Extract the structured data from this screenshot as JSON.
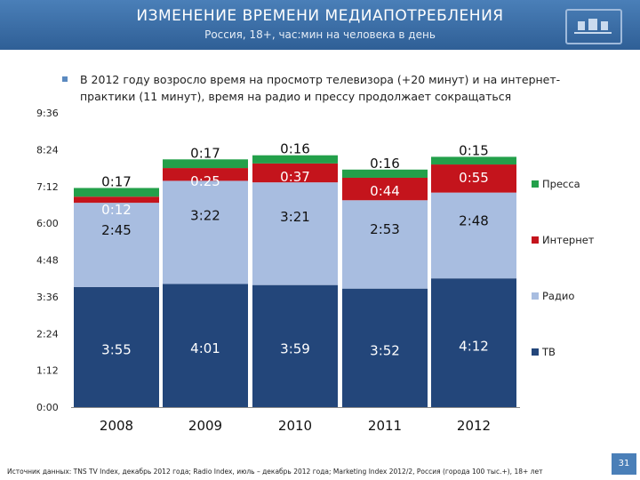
{
  "header": {
    "title": "ИЗМЕНЕНИЕ ВРЕМЕНИ МЕДИАПОТРЕБЛЕНИЯ",
    "subtitle": "Россия, 18+, час:мин на человека в день"
  },
  "note": "В 2012 году возросло время на просмотр телевизора (+20 минут) и на интернет-практики (11 минут), время на радио и прессу продолжает сокращаться",
  "source": "Источник данных: TNS TV Index, декабрь 2012 года; Radio Index, июль – декабрь 2012 года; Marketing Index 2012/2, Россия (города 100 тыс.+), 18+ лет",
  "page_number": "31",
  "colors": {
    "tv": "#23467a",
    "radio": "#a8bde0",
    "internet": "#c4141c",
    "press": "#23a04a",
    "header": "#3a6ea5"
  },
  "chart_data": {
    "type": "bar",
    "stacked": true,
    "categories": [
      "2008",
      "2009",
      "2010",
      "2011",
      "2012"
    ],
    "y_ticks": [
      "0:00",
      "1:12",
      "2:24",
      "3:36",
      "4:48",
      "6:00",
      "7:12",
      "8:24",
      "9:36"
    ],
    "ylim_minutes": [
      0,
      576
    ],
    "legend_position": "right",
    "series": [
      {
        "key": "tv",
        "name": "ТВ",
        "values_minutes": [
          235,
          241,
          239,
          232,
          252
        ],
        "labels": [
          "3:55",
          "4:01",
          "3:59",
          "3:52",
          "4:12"
        ],
        "label_color": "#ffffff"
      },
      {
        "key": "radio",
        "name": "Радио",
        "values_minutes": [
          165,
          202,
          201,
          173,
          168
        ],
        "labels": [
          "2:45",
          "3:22",
          "3:21",
          "2:53",
          "2:48"
        ],
        "label_color": "#111111"
      },
      {
        "key": "internet",
        "name": "Интернет",
        "values_minutes": [
          12,
          25,
          37,
          44,
          55
        ],
        "labels": [
          "0:12",
          "0:25",
          "0:37",
          "0:44",
          "0:55"
        ],
        "label_color": "#ffffff"
      },
      {
        "key": "press",
        "name": "Пресса",
        "values_minutes": [
          17,
          17,
          16,
          16,
          15
        ],
        "labels": [
          "0:17",
          "0:17",
          "0:16",
          "0:16",
          "0:15"
        ],
        "label_color": "#111111"
      }
    ]
  }
}
